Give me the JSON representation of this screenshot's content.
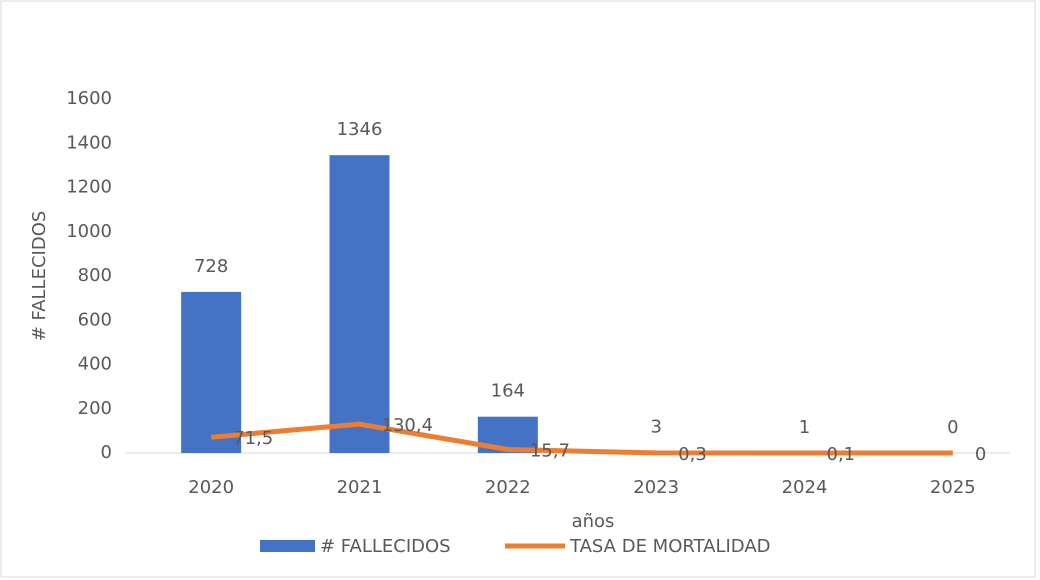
{
  "chart_data": {
    "type": "bar",
    "categories": [
      "2020",
      "2021",
      "2022",
      "2023",
      "2024",
      "2025"
    ],
    "series": [
      {
        "name": "# FALLECIDOS",
        "type": "bar",
        "color": "#4472c4",
        "values": [
          728,
          1346,
          164,
          3,
          1,
          0
        ]
      },
      {
        "name": "TASA DE MORTALIDAD",
        "type": "line",
        "color": "#ed7d31",
        "values": [
          71.5,
          130.4,
          15.7,
          0.3,
          0.1,
          0
        ],
        "value_labels": [
          "71,5",
          "130,4",
          "15,7",
          "0,3",
          "0,1",
          "0"
        ]
      }
    ],
    "ylabel": "# FALLECIDOS",
    "xlabel": "años",
    "ylim": [
      0,
      1600
    ],
    "yticks": [
      0,
      200,
      400,
      600,
      800,
      1000,
      1200,
      1400,
      1600
    ],
    "grid": false,
    "legend": "bottom"
  }
}
